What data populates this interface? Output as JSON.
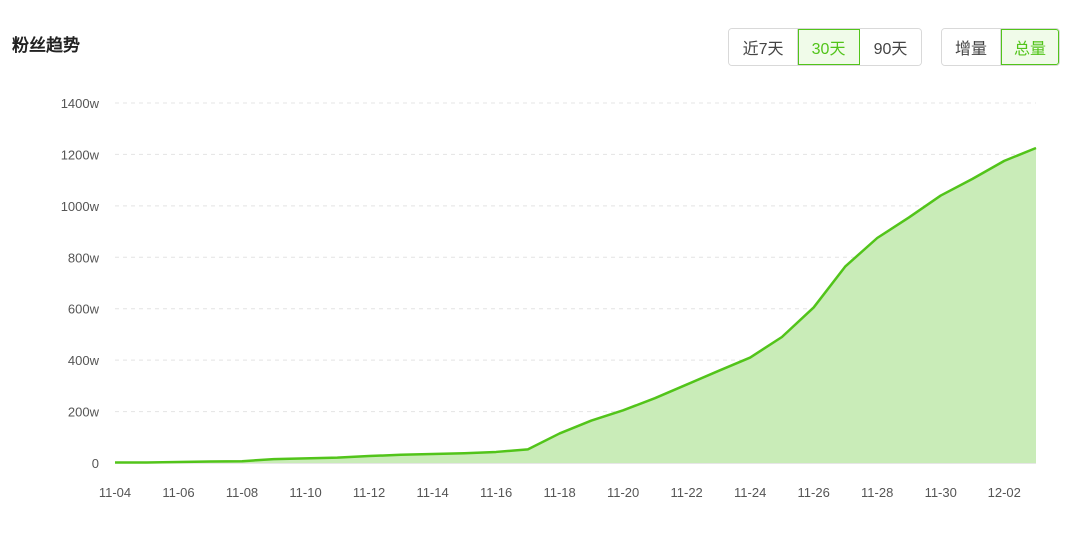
{
  "header": {
    "title": "粉丝趋势"
  },
  "range_selector": {
    "options": [
      "近7天",
      "30天",
      "90天"
    ],
    "selected": "30天"
  },
  "mode_selector": {
    "options": [
      "增量",
      "总量"
    ],
    "selected": "总量"
  },
  "colors": {
    "accent": "#52c41a",
    "area_fill": "#c9ecb8",
    "grid": "#e4e4e4",
    "axis_text": "#555555"
  },
  "chart_data": {
    "type": "area",
    "title": "粉丝趋势",
    "ylim": [
      0,
      1400
    ],
    "yticks": [
      0,
      200,
      400,
      600,
      800,
      1000,
      1200,
      1400
    ],
    "ytick_labels": [
      "0",
      "200w",
      "400w",
      "600w",
      "800w",
      "1000w",
      "1200w",
      "1400w"
    ],
    "x": [
      "11-04",
      "11-05",
      "11-06",
      "11-07",
      "11-08",
      "11-09",
      "11-10",
      "11-11",
      "11-12",
      "11-13",
      "11-14",
      "11-15",
      "11-16",
      "11-17",
      "11-18",
      "11-19",
      "11-20",
      "11-21",
      "11-22",
      "11-23",
      "11-24",
      "11-25",
      "11-26",
      "11-27",
      "11-28",
      "11-29",
      "11-30",
      "12-01",
      "12-02",
      "12-03"
    ],
    "xtick_labels": [
      "11-04",
      "11-06",
      "11-08",
      "11-10",
      "11-12",
      "11-14",
      "11-16",
      "11-18",
      "11-20",
      "11-22",
      "11-24",
      "11-26",
      "11-28",
      "11-30",
      "12-02"
    ],
    "series": [
      {
        "values": [
          2,
          2,
          4,
          6,
          7,
          15,
          18,
          21,
          27,
          32,
          35,
          38,
          43,
          53,
          115,
          165,
          205,
          252,
          305,
          358,
          410,
          490,
          605,
          765,
          875,
          955,
          1040,
          1105,
          1175,
          1225
        ]
      }
    ],
    "grid": true,
    "legend": "none"
  }
}
